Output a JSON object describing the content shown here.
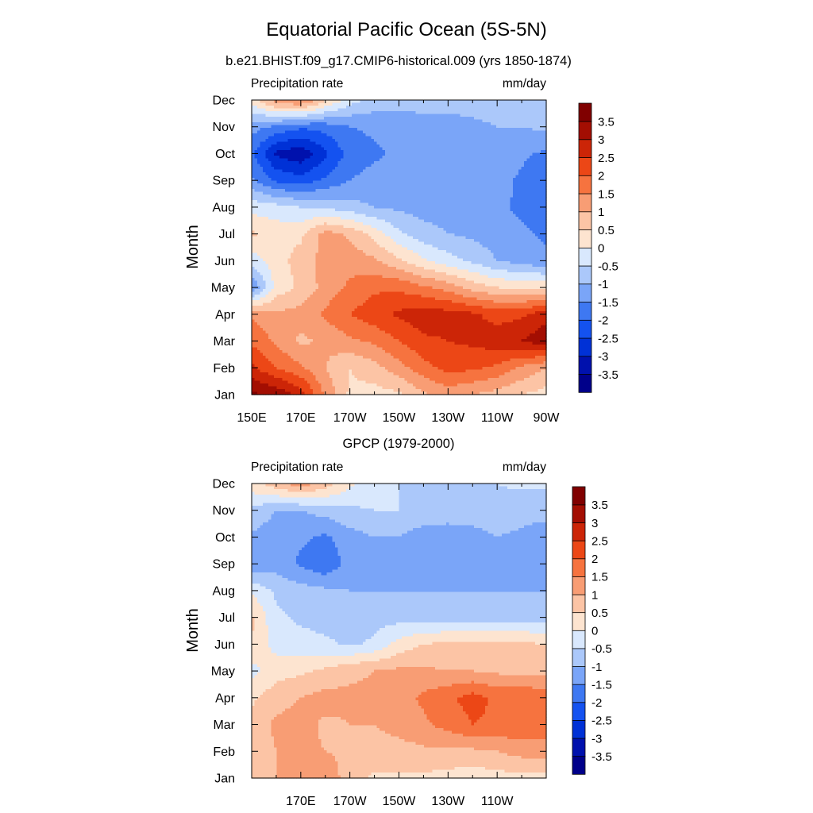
{
  "title": "Equatorial Pacific Ocean (5S-5N)",
  "chart_data": [
    {
      "type": "heatmap",
      "title": "b.e21.BHIST.f09_g17.CMIP6-historical.009 (yrs 1850-1874)",
      "left_string": "Precipitation rate",
      "right_string": "mm/day",
      "ylabel": "Month",
      "xticklabels": [
        "150E",
        "170E",
        "170W",
        "150W",
        "130W",
        "110W",
        "90W"
      ],
      "yticklabels": [
        "Jan",
        "Feb",
        "Mar",
        "Apr",
        "May",
        "Jun",
        "Jul",
        "Aug",
        "Sep",
        "Oct",
        "Nov",
        "Dec"
      ],
      "xlim": [
        150,
        270
      ],
      "ylim": [
        1,
        12
      ],
      "levels": [
        -3.5,
        -3,
        -2.5,
        -2,
        -1.5,
        -1,
        -0.5,
        0,
        0.5,
        1,
        1.5,
        2,
        2.5,
        3,
        3.5
      ],
      "level_labels": [
        "-3.5",
        "-3",
        "-2.5",
        "-2",
        "-1.5",
        "-1",
        "-0.5",
        "0",
        "0.5",
        "1",
        "1.5",
        "2",
        "2.5",
        "3",
        "3.5"
      ],
      "colors": [
        "#00008a",
        "#0011ad",
        "#0031d6",
        "#1452f0",
        "#3e78f2",
        "#7aa5f8",
        "#abc8fa",
        "#d9e8fd",
        "#fde4d0",
        "#fcc4a5",
        "#f89d74",
        "#f6733f",
        "#ec4716",
        "#cc2507",
        "#a30e02",
        "#800000"
      ],
      "x": [
        150,
        160,
        170,
        180,
        190,
        200,
        210,
        220,
        230,
        240,
        250,
        260,
        270
      ],
      "y": [
        1,
        2,
        3,
        4,
        5,
        6,
        7,
        8,
        9,
        10,
        11,
        12
      ],
      "z": [
        [
          3.6,
          3.4,
          2.8,
          1.4,
          0.4,
          0.3,
          0.4,
          0.9,
          1.2,
          1.0,
          0.8,
          0.5,
          0.3
        ],
        [
          2.6,
          2.0,
          1.6,
          1.0,
          0.5,
          0.8,
          1.3,
          1.8,
          2.2,
          2.1,
          1.9,
          1.4,
          1.0
        ],
        [
          1.9,
          1.4,
          0.9,
          1.1,
          1.4,
          1.6,
          2.0,
          2.4,
          2.5,
          2.6,
          2.8,
          3.0,
          3.4
        ],
        [
          1.4,
          1.1,
          1.2,
          1.6,
          2.0,
          2.3,
          2.6,
          2.8,
          2.7,
          2.6,
          2.3,
          2.4,
          2.8
        ],
        [
          -1.5,
          0.2,
          0.6,
          1.2,
          1.6,
          1.9,
          1.9,
          1.6,
          1.3,
          0.8,
          0.5,
          0.4,
          0.4
        ],
        [
          -0.3,
          0.3,
          0.7,
          1.2,
          1.3,
          1.1,
          0.6,
          0.1,
          -0.3,
          -0.6,
          -1.0,
          -1.2,
          -1.4
        ],
        [
          0.6,
          0.3,
          0.4,
          1.2,
          0.9,
          0.3,
          -0.4,
          -0.8,
          -1.0,
          -1.1,
          -1.3,
          -1.4,
          -1.6
        ],
        [
          -0.2,
          -0.3,
          -0.5,
          -0.6,
          -0.8,
          -1.0,
          -1.1,
          -1.2,
          -1.2,
          -1.3,
          -1.4,
          -1.6,
          -1.7
        ],
        [
          -1.4,
          -2.1,
          -2.3,
          -1.9,
          -1.5,
          -1.3,
          -1.2,
          -1.2,
          -1.3,
          -1.3,
          -1.3,
          -1.6,
          -2.0
        ],
        [
          -1.9,
          -3.1,
          -3.4,
          -2.6,
          -1.8,
          -1.6,
          -1.4,
          -1.4,
          -1.4,
          -1.3,
          -1.2,
          -1.4,
          -1.6
        ],
        [
          -1.3,
          -1.6,
          -1.9,
          -1.8,
          -1.5,
          -1.4,
          -1.3,
          -1.2,
          -1.2,
          -1.1,
          -1.0,
          -1.0,
          -0.9
        ],
        [
          0.2,
          1.3,
          1.6,
          0.6,
          -0.3,
          -0.7,
          -0.8,
          -0.8,
          -0.8,
          -0.8,
          -0.8,
          -0.8,
          -0.8
        ]
      ]
    },
    {
      "type": "heatmap",
      "title": "GPCP (1979-2000)",
      "left_string": "Precipitation rate",
      "right_string": "mm/day",
      "ylabel": "Month",
      "xticklabels": [
        "170E",
        "170W",
        "150W",
        "130W",
        "110W"
      ],
      "yticklabels": [
        "Jan",
        "Feb",
        "Mar",
        "Apr",
        "May",
        "Jun",
        "Jul",
        "Aug",
        "Sep",
        "Oct",
        "Nov",
        "Dec"
      ],
      "xlim": [
        150,
        270
      ],
      "ylim": [
        1,
        12
      ],
      "levels": [
        -3.5,
        -3,
        -2.5,
        -2,
        -1.5,
        -1,
        -0.5,
        0,
        0.5,
        1,
        1.5,
        2,
        2.5,
        3,
        3.5
      ],
      "level_labels": [
        "-3.5",
        "-3",
        "-2.5",
        "-2",
        "-1.5",
        "-1",
        "-0.5",
        "0",
        "0.5",
        "1",
        "1.5",
        "2",
        "2.5",
        "3",
        "3.5"
      ],
      "colors": [
        "#00008a",
        "#0011ad",
        "#0031d6",
        "#1452f0",
        "#3e78f2",
        "#7aa5f8",
        "#abc8fa",
        "#d9e8fd",
        "#fde4d0",
        "#fcc4a5",
        "#f89d74",
        "#f6733f",
        "#ec4716",
        "#cc2507",
        "#a30e02",
        "#800000"
      ],
      "x": [
        150,
        160,
        170,
        180,
        190,
        200,
        210,
        220,
        230,
        240,
        250,
        260,
        270
      ],
      "y": [
        1,
        2,
        3,
        4,
        5,
        6,
        7,
        8,
        9,
        10,
        11,
        12
      ],
      "z": [
        [
          0.7,
          1.0,
          1.3,
          1.4,
          0.7,
          0.4,
          0.4,
          0.4,
          0.3,
          0.2,
          0.3,
          0.3,
          0.3
        ],
        [
          0.6,
          1.0,
          1.1,
          1.0,
          0.9,
          0.8,
          0.8,
          0.9,
          0.9,
          0.9,
          1.0,
          1.2,
          1.3
        ],
        [
          0.7,
          1.1,
          1.2,
          0.9,
          1.0,
          1.0,
          1.2,
          1.4,
          1.7,
          2.0,
          1.9,
          1.9,
          1.7
        ],
        [
          0.4,
          0.8,
          1.0,
          1.2,
          1.1,
          1.1,
          1.3,
          1.6,
          1.9,
          2.2,
          1.9,
          2.0,
          1.8
        ],
        [
          -0.2,
          0.3,
          0.4,
          0.6,
          0.9,
          1.0,
          1.1,
          1.1,
          1.0,
          1.0,
          0.9,
          0.8,
          0.8
        ],
        [
          0.5,
          -0.2,
          -0.3,
          -0.4,
          -0.6,
          -0.4,
          0.2,
          0.5,
          0.6,
          0.6,
          0.6,
          0.6,
          0.5
        ],
        [
          0.6,
          -0.4,
          -0.6,
          -0.7,
          -0.7,
          -0.7,
          -0.7,
          -0.7,
          -0.7,
          -0.7,
          -0.7,
          -0.7,
          -0.7
        ],
        [
          -0.1,
          -0.6,
          -0.8,
          -0.9,
          -1.0,
          -1.0,
          -1.0,
          -1.0,
          -1.0,
          -1.0,
          -1.0,
          -1.0,
          -1.0
        ],
        [
          -1.5,
          -1.2,
          -1.6,
          -1.9,
          -1.3,
          -1.1,
          -1.1,
          -1.3,
          -1.4,
          -1.3,
          -1.1,
          -1.2,
          -1.4
        ],
        [
          -1.1,
          -1.3,
          -1.4,
          -1.6,
          -1.2,
          -1.0,
          -1.0,
          -1.3,
          -1.3,
          -1.2,
          -1.0,
          -1.1,
          -1.3
        ],
        [
          -0.6,
          -1.0,
          -1.0,
          -0.8,
          -0.6,
          -0.5,
          -0.5,
          -0.6,
          -0.7,
          -0.7,
          -0.7,
          -0.8,
          -0.8
        ],
        [
          0.3,
          0.8,
          1.3,
          0.8,
          0.1,
          -0.3,
          -0.5,
          -0.6,
          -0.6,
          -0.5,
          -0.5,
          -0.4,
          -0.4
        ]
      ]
    }
  ]
}
